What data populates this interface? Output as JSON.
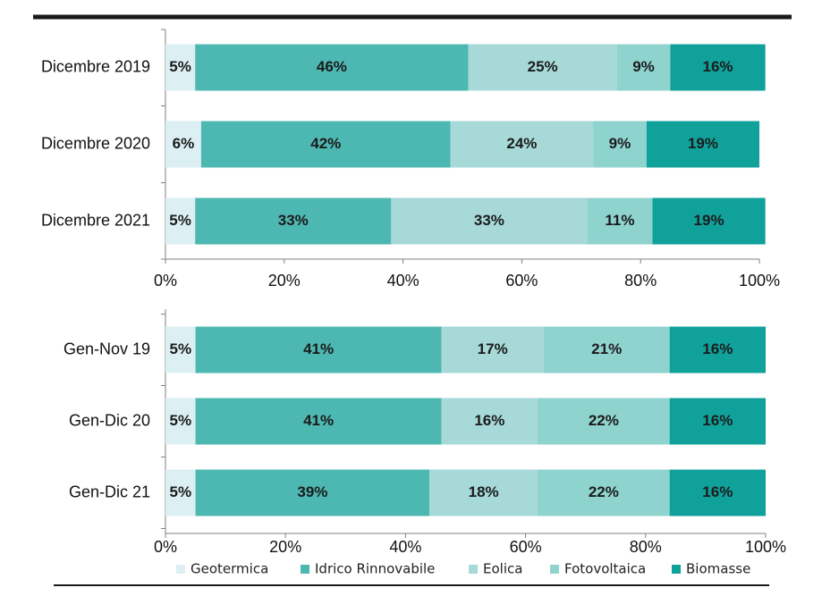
{
  "chart_data": [
    {
      "type": "bar",
      "orientation": "horizontal",
      "stacked": "percent",
      "categories": [
        "Dicembre 2019",
        "Dicembre 2020",
        "Dicembre 2021"
      ],
      "x_ticks": [
        "0%",
        "20%",
        "40%",
        "60%",
        "80%",
        "100%"
      ],
      "xlim": [
        0,
        100
      ],
      "series": [
        {
          "name": "Geotermica",
          "values": [
            5,
            6,
            5
          ],
          "labels": [
            "5%",
            "6%",
            "5%"
          ]
        },
        {
          "name": "Idrico Rinnovabile",
          "values": [
            46,
            42,
            33
          ],
          "labels": [
            "46%",
            "42%",
            "33%"
          ]
        },
        {
          "name": "Eolica",
          "values": [
            25,
            24,
            33
          ],
          "labels": [
            "25%",
            "24%",
            "33%"
          ]
        },
        {
          "name": "Fotovoltaica",
          "values": [
            9,
            9,
            11
          ],
          "labels": [
            "9%",
            "9%",
            "11%"
          ]
        },
        {
          "name": "Biomasse",
          "values": [
            16,
            19,
            19
          ],
          "labels": [
            "16%",
            "19%",
            "19%"
          ]
        }
      ]
    },
    {
      "type": "bar",
      "orientation": "horizontal",
      "stacked": "percent",
      "categories": [
        "Gen-Nov 19",
        "Gen-Dic 20",
        "Gen-Dic 21"
      ],
      "x_ticks": [
        "0%",
        "20%",
        "40%",
        "60%",
        "80%",
        "100%"
      ],
      "xlim": [
        0,
        100
      ],
      "series": [
        {
          "name": "Geotermica",
          "values": [
            5,
            5,
            5
          ],
          "labels": [
            "5%",
            "5%",
            "5%"
          ]
        },
        {
          "name": "Idrico Rinnovabile",
          "values": [
            41,
            41,
            39
          ],
          "labels": [
            "41%",
            "41%",
            "39%"
          ]
        },
        {
          "name": "Eolica",
          "values": [
            17,
            16,
            18
          ],
          "labels": [
            "17%",
            "16%",
            "18%"
          ]
        },
        {
          "name": "Fotovoltaica",
          "values": [
            21,
            22,
            22
          ],
          "labels": [
            "21%",
            "22%",
            "22%"
          ]
        },
        {
          "name": "Biomasse",
          "values": [
            16,
            16,
            16
          ],
          "labels": [
            "16%",
            "16%",
            "16%"
          ]
        }
      ]
    }
  ],
  "legend": {
    "placement": "bottom",
    "items": [
      "Geotermica",
      "Idrico Rinnovabile",
      "Eolica",
      "Fotovoltaica",
      "Biomasse"
    ]
  },
  "colors": {
    "Geotermica": "#dceff3",
    "Idrico Rinnovabile": "#4db8b2",
    "Eolica": "#a6d9d8",
    "Fotovoltaica": "#8fd3cf",
    "Biomasse": "#10a19b",
    "axis": "#808080",
    "rule": "#1a1a1a"
  }
}
